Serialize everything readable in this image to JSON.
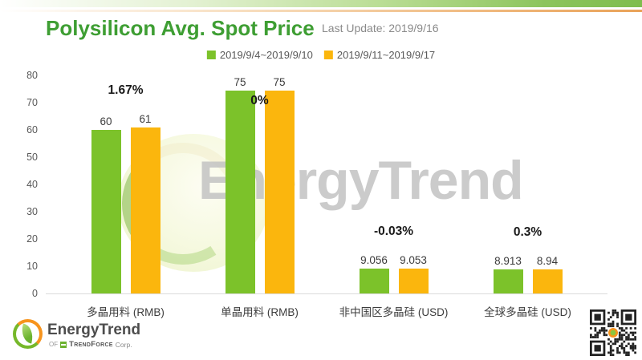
{
  "header": {
    "title": "Polysilicon Avg. Spot Price",
    "last_update": "Last Update: 2019/9/16"
  },
  "legend": [
    {
      "label": "2019/9/4~2019/9/10",
      "color": "#7cc22a"
    },
    {
      "label": "2019/9/11~2019/9/17",
      "color": "#fbb60d"
    }
  ],
  "chart_data": {
    "type": "bar",
    "title": "Polysilicon Avg. Spot Price",
    "categories": [
      "多晶用料 (RMB)",
      "单晶用料 (RMB)",
      "非中国区多晶硅 (USD)",
      "全球多晶硅 (USD)"
    ],
    "series": [
      {
        "name": "2019/9/4~2019/9/10",
        "color": "#7cc22a",
        "values": [
          60,
          75,
          9.056,
          8.913
        ],
        "labels": [
          "60",
          "75",
          "9.056",
          "8.913"
        ]
      },
      {
        "name": "2019/9/11~2019/9/17",
        "color": "#fbb60d",
        "values": [
          61,
          75,
          9.053,
          8.94
        ],
        "labels": [
          "61",
          "75",
          "9.053",
          "8.94"
        ]
      }
    ],
    "change_labels": [
      "1.67%",
      "0%",
      "-0.03%",
      "0.3%"
    ],
    "xlabel": "",
    "ylabel": "",
    "ylim": [
      0,
      80
    ],
    "yticks": [
      0,
      10,
      20,
      30,
      40,
      50,
      60,
      70,
      80
    ],
    "grid": false,
    "legend_position": "top"
  },
  "watermark": {
    "text": "EnergyTrend"
  },
  "footer": {
    "brand": "EnergyTrend",
    "of": "Of",
    "trendforce": "TrendForce",
    "corp": "Corp."
  },
  "colors": {
    "brand_green": "#3e9e33",
    "bar_green": "#7cc22a",
    "bar_orange": "#fbb60d",
    "top_bar_green": "#7fbd4e",
    "top_line_orange": "#e9a258"
  }
}
